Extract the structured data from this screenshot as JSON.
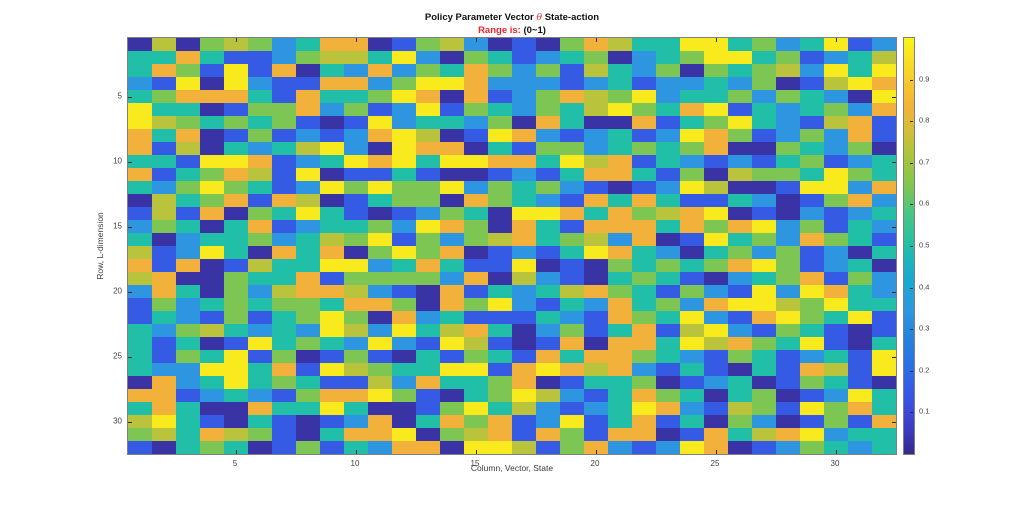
{
  "figure": {
    "title": {
      "prefix": "Policy Parameter Vector ",
      "theta": "θ",
      "suffix": "  State-action"
    },
    "subtitle": {
      "label": "Range is:",
      "value": " (0~1)"
    },
    "colors": {
      "accent_red": "#e8242b",
      "title_text": "#111111",
      "tick_text": "#3f3f3f",
      "axis_border": "#7f7f7f",
      "background": "#ffffff"
    }
  },
  "chart_data": {
    "type": "heatmap",
    "title": "Policy Parameter Vector θ  State-action",
    "subtitle": "Range is: (0~1)",
    "xlabel": "Column, Vector, State",
    "ylabel": "Row, L-dimension",
    "x_ticks": [
      5,
      10,
      15,
      20,
      25,
      30
    ],
    "y_ticks": [
      5,
      10,
      15,
      20,
      25,
      30
    ],
    "colorbar_ticks": [
      0.1,
      0.2,
      0.3,
      0.4,
      0.5,
      0.6,
      0.7,
      0.8,
      0.9
    ],
    "value_range": [
      0,
      1
    ],
    "rows": 32,
    "cols": 32,
    "colormap": "parula",
    "colormap_stops": [
      [
        0.0,
        "#352a87"
      ],
      [
        0.06,
        "#3d3bc3"
      ],
      [
        0.12,
        "#3a4fe0"
      ],
      [
        0.2,
        "#2c6ce8"
      ],
      [
        0.28,
        "#2484dd"
      ],
      [
        0.34,
        "#2e96e0"
      ],
      [
        0.42,
        "#18a9d2"
      ],
      [
        0.5,
        "#21bfa8"
      ],
      [
        0.58,
        "#48c681"
      ],
      [
        0.64,
        "#7dc654"
      ],
      [
        0.7,
        "#a2c43e"
      ],
      [
        0.74,
        "#b9c33c"
      ],
      [
        0.8,
        "#e0bb36"
      ],
      [
        0.83,
        "#f2b13a"
      ],
      [
        0.88,
        "#f6c32e"
      ],
      [
        0.94,
        "#f8dd24"
      ],
      [
        1.0,
        "#f9f615"
      ]
    ],
    "value_map": {
      "N": 0.03,
      "B": 0.15,
      "A": 0.34,
      "T": 0.5,
      "G": 0.64,
      "O": 0.74,
      "M": 0.83,
      "Y": 0.97
    },
    "matrix_rows": [
      "NONGOGATMMNBGOANBNGMOTTYYTGATYBA",
      "TTMTBBAGOOTYANGTBATGNATGYYTGBATO",
      "TMGBYBMNTAMAGTMGAGBOTAGNGTGOAYTY",
      "ABYNYABBMMAGYYMAAABATBAATAGNBOYM",
      "TGMMMTBMTTGYMNMBAGMOGYATTGAGTANY",
      "YTTNBGGMAGBAYBGTAGTOYGTMYBTATGAM",
      "YOGTGTGBNBYATTAGNMTNNMBTGYTABOMB",
      "MTMNBGBABAMYONBYMABATBAYMGBAGAMB",
      "MBONTATOYANYMMNTBGGATGTGMNNGTAGN",
      "TTBYYMBATYMYTYYMMTYOMBTABABTGBAT",
      "MBTGMOBYNBBTBNNBABTMMTBGNOGGTYGT",
      "TAGYGTBAYGYGGYAGTGABNBAYONNBYYAM",
      "NOTGMBMONBTGGNMGTABMTMTBBTANBGMA",
      "BOBMNGTYTBNBAGTNYYMTMGOMYNBNABAT",
      "AGTNTMBATTGAYMGNMTBMMMTMGMYAGBTA",
      "TNATTGATOGYBGAGOMTGOAMNBYTGAMGTB",
      "OBAYTNMTMNGYGMNBABTYMTANTGAGBANT",
      "MBMNBOTTYYATMTBBYNBNGTGTGMYGBATN",
      "OMNNGTTMBGGGGAMNOABNTGTBNATGMBGA",
      "AMTNGAOMMOABNMBTATOMGTBGABYAYMTA",
      "BGATGTGGTMMGNMGYABTAMTGAMYYOGYTT",
      "BTABGBTGYGNMATBBBTABMGTYABMYGTYB",
      "TAGOTATAYOAYTOMTNAGBTMBOYABGTBNB",
      "TBTNBYTGTAYABYOBNBMNMMTYOMGTYBNT",
      "TBGTYBGNBGBNTBGTBMTMMGTABGTBATBY",
      "TAAYYTMBYOGTTYYBMYMOMABTBNTBMOBY",
      "NMATYTGTBBOAMTTGMNBTTGNBATNBGTBN",
      "MMBATABGMMYGBNTGYOABTMGTNTGNBAYT",
      "TMTNNMTTYTNNBGYTOABATYMABOGBYGMT",
      "OYTBNTBNBAMNTMGMBAYBTMBTNGANBGBM",
      "GOTMOGBNTMMYNGOMBMGBMMNBMTOMYATT",
      "BNTGTNBGBTAMMNYYOBGMABAYMNBAGTAT"
    ]
  }
}
